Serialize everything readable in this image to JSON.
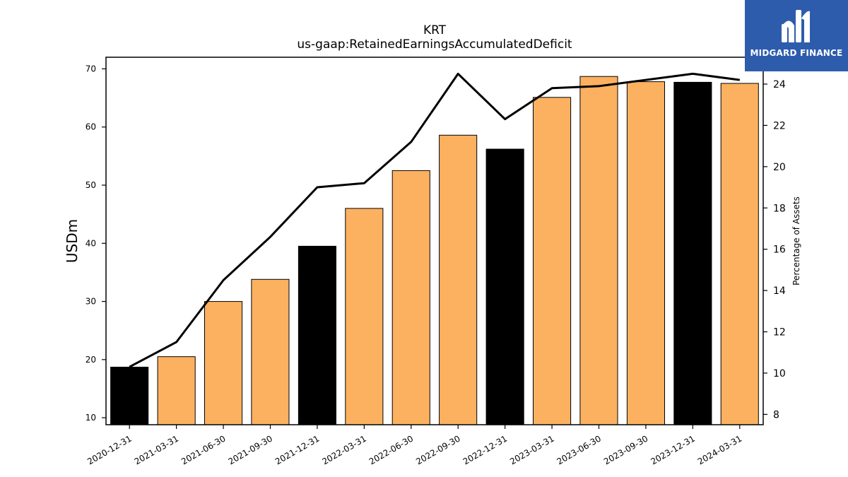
{
  "chart_data": {
    "type": "bar",
    "title": "KRT",
    "subtitle": "us-gaap:RetainedEarningsAccumulatedDeficit",
    "ylabel": "USDm",
    "ylabel_right": "Percentage of Assets",
    "categories": [
      "2020-12-31",
      "2021-03-31",
      "2021-06-30",
      "2021-09-30",
      "2021-12-31",
      "2022-03-31",
      "2022-06-30",
      "2022-09-30",
      "2022-12-31",
      "2023-03-31",
      "2023-06-30",
      "2023-09-30",
      "2023-12-31",
      "2024-03-31"
    ],
    "series": [
      {
        "type": "bar",
        "axis": "left",
        "values": [
          18.7,
          20.5,
          30.0,
          33.8,
          39.5,
          46.0,
          52.5,
          58.6,
          56.2,
          65.1,
          68.7,
          67.8,
          67.7,
          67.5
        ],
        "colors": [
          "#000000",
          "#fbb160",
          "#fbb160",
          "#fbb160",
          "#000000",
          "#fbb160",
          "#fbb160",
          "#fbb160",
          "#000000",
          "#fbb160",
          "#fbb160",
          "#fbb160",
          "#000000",
          "#fbb160"
        ]
      },
      {
        "type": "line",
        "axis": "right",
        "color": "#000000",
        "values": [
          10.3,
          11.5,
          14.5,
          16.6,
          19.0,
          19.2,
          21.2,
          24.5,
          22.3,
          23.8,
          23.9,
          24.2,
          24.5,
          24.2
        ]
      }
    ],
    "ylim": [
      8.8,
      72.0
    ],
    "yticks": [
      10,
      20,
      30,
      40,
      50,
      60,
      70
    ],
    "ylim_right": [
      7.5,
      25.3
    ],
    "yticks_right": [
      8,
      10,
      12,
      14,
      16,
      18,
      20,
      22,
      24
    ],
    "grid": false,
    "legend": "none"
  },
  "logo": {
    "text": "MIDGARD FINANCE",
    "bg_color": "#2e5cad"
  }
}
